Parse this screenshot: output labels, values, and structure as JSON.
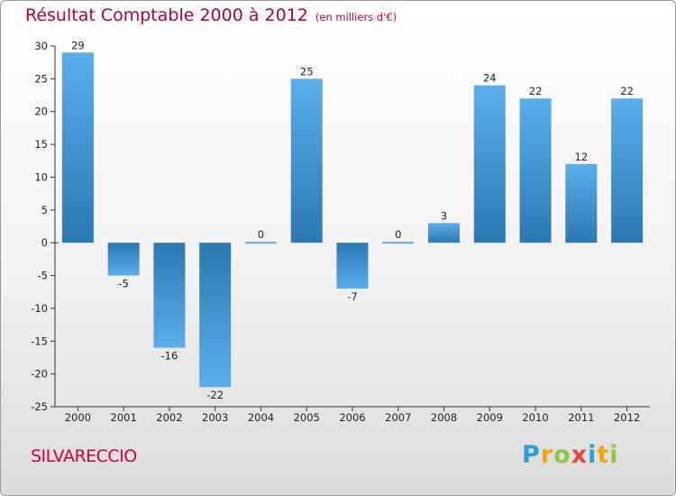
{
  "header": {
    "title": "Résultat Comptable 2000 à 2012",
    "subtitle": "(en milliers d'€)"
  },
  "commune": "SILVARECCIO",
  "logo": {
    "letters": [
      "P",
      "r",
      "o",
      "x",
      "i",
      "t",
      "i"
    ]
  },
  "colors": {
    "title": "#b3003a",
    "bar_light": "#5aaeea",
    "bar_dark": "#2b78b3",
    "axis": "#333333"
  },
  "chart_data": {
    "type": "bar",
    "title": "Résultat Comptable 2000 à 2012",
    "xlabel": "",
    "ylabel": "",
    "ylim": [
      -25,
      30
    ],
    "yticks": [
      30,
      25,
      20,
      15,
      10,
      5,
      0,
      -5,
      -10,
      -15,
      -20,
      -25
    ],
    "grid": false,
    "categories": [
      "2000",
      "2001",
      "2002",
      "2003",
      "2004",
      "2005",
      "2006",
      "2007",
      "2008",
      "2009",
      "2010",
      "2011",
      "2012"
    ],
    "values": [
      29,
      -5,
      -16,
      -22,
      0,
      25,
      -7,
      0,
      3,
      24,
      22,
      12,
      22
    ]
  }
}
